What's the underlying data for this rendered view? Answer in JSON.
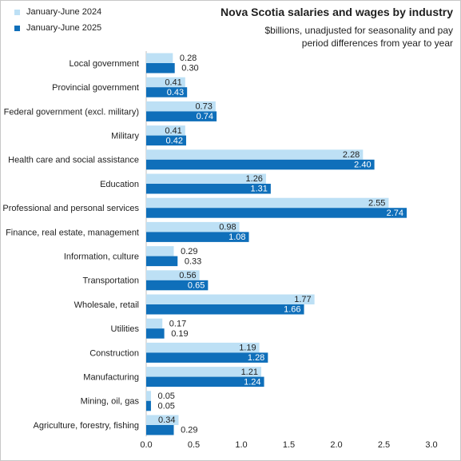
{
  "chart_data": {
    "type": "bar",
    "orientation": "horizontal",
    "title": "Nova Scotia salaries and wages by industry",
    "subtitle_lines": [
      "$billions, unadjusted for seasonality and pay",
      "period differences from year to year"
    ],
    "categories": [
      "Local government",
      "Provincial government",
      "Federal government (excl. military)",
      "Military",
      "Health care and social assistance",
      "Education",
      "Professional and personal services",
      "Finance, real estate, management",
      "Information, culture",
      "Transportation",
      "Wholesale, retail",
      "Utilities",
      "Construction",
      "Manufacturing",
      "Mining, oil, gas",
      "Agriculture, forestry, fishing"
    ],
    "series": [
      {
        "name": "January-June 2024",
        "color": "#bde0f5",
        "values": [
          0.28,
          0.41,
          0.73,
          0.41,
          2.28,
          1.26,
          2.55,
          0.98,
          0.29,
          0.56,
          1.77,
          0.17,
          1.19,
          1.21,
          0.05,
          0.34
        ],
        "labels": [
          "0.28",
          "0.41",
          "0.73",
          "0.41",
          "2.28",
          "1.26",
          "2.55",
          "0.98",
          "0.29",
          "0.56",
          "1.77",
          "0.17",
          "1.19",
          "1.21",
          "0.05",
          "0.34"
        ]
      },
      {
        "name": "January-June 2025",
        "color": "#0f6fba",
        "values": [
          0.3,
          0.43,
          0.74,
          0.42,
          2.4,
          1.31,
          2.74,
          1.08,
          0.33,
          0.65,
          1.66,
          0.19,
          1.28,
          1.24,
          0.05,
          0.29
        ],
        "labels": [
          "0.30",
          "0.43",
          "0.74",
          "0.42",
          "2.40",
          "1.31",
          "2.74",
          "1.08",
          "0.33",
          "0.65",
          "1.66",
          "0.19",
          "1.28",
          "1.24",
          "0.05",
          "0.29"
        ]
      }
    ],
    "xlim": [
      0,
      3.0
    ],
    "x_ticks": [
      "0.0",
      "0.5",
      "1.0",
      "1.5",
      "2.0",
      "2.5",
      "3.0"
    ],
    "grid": false,
    "legend_position": "top-left"
  }
}
